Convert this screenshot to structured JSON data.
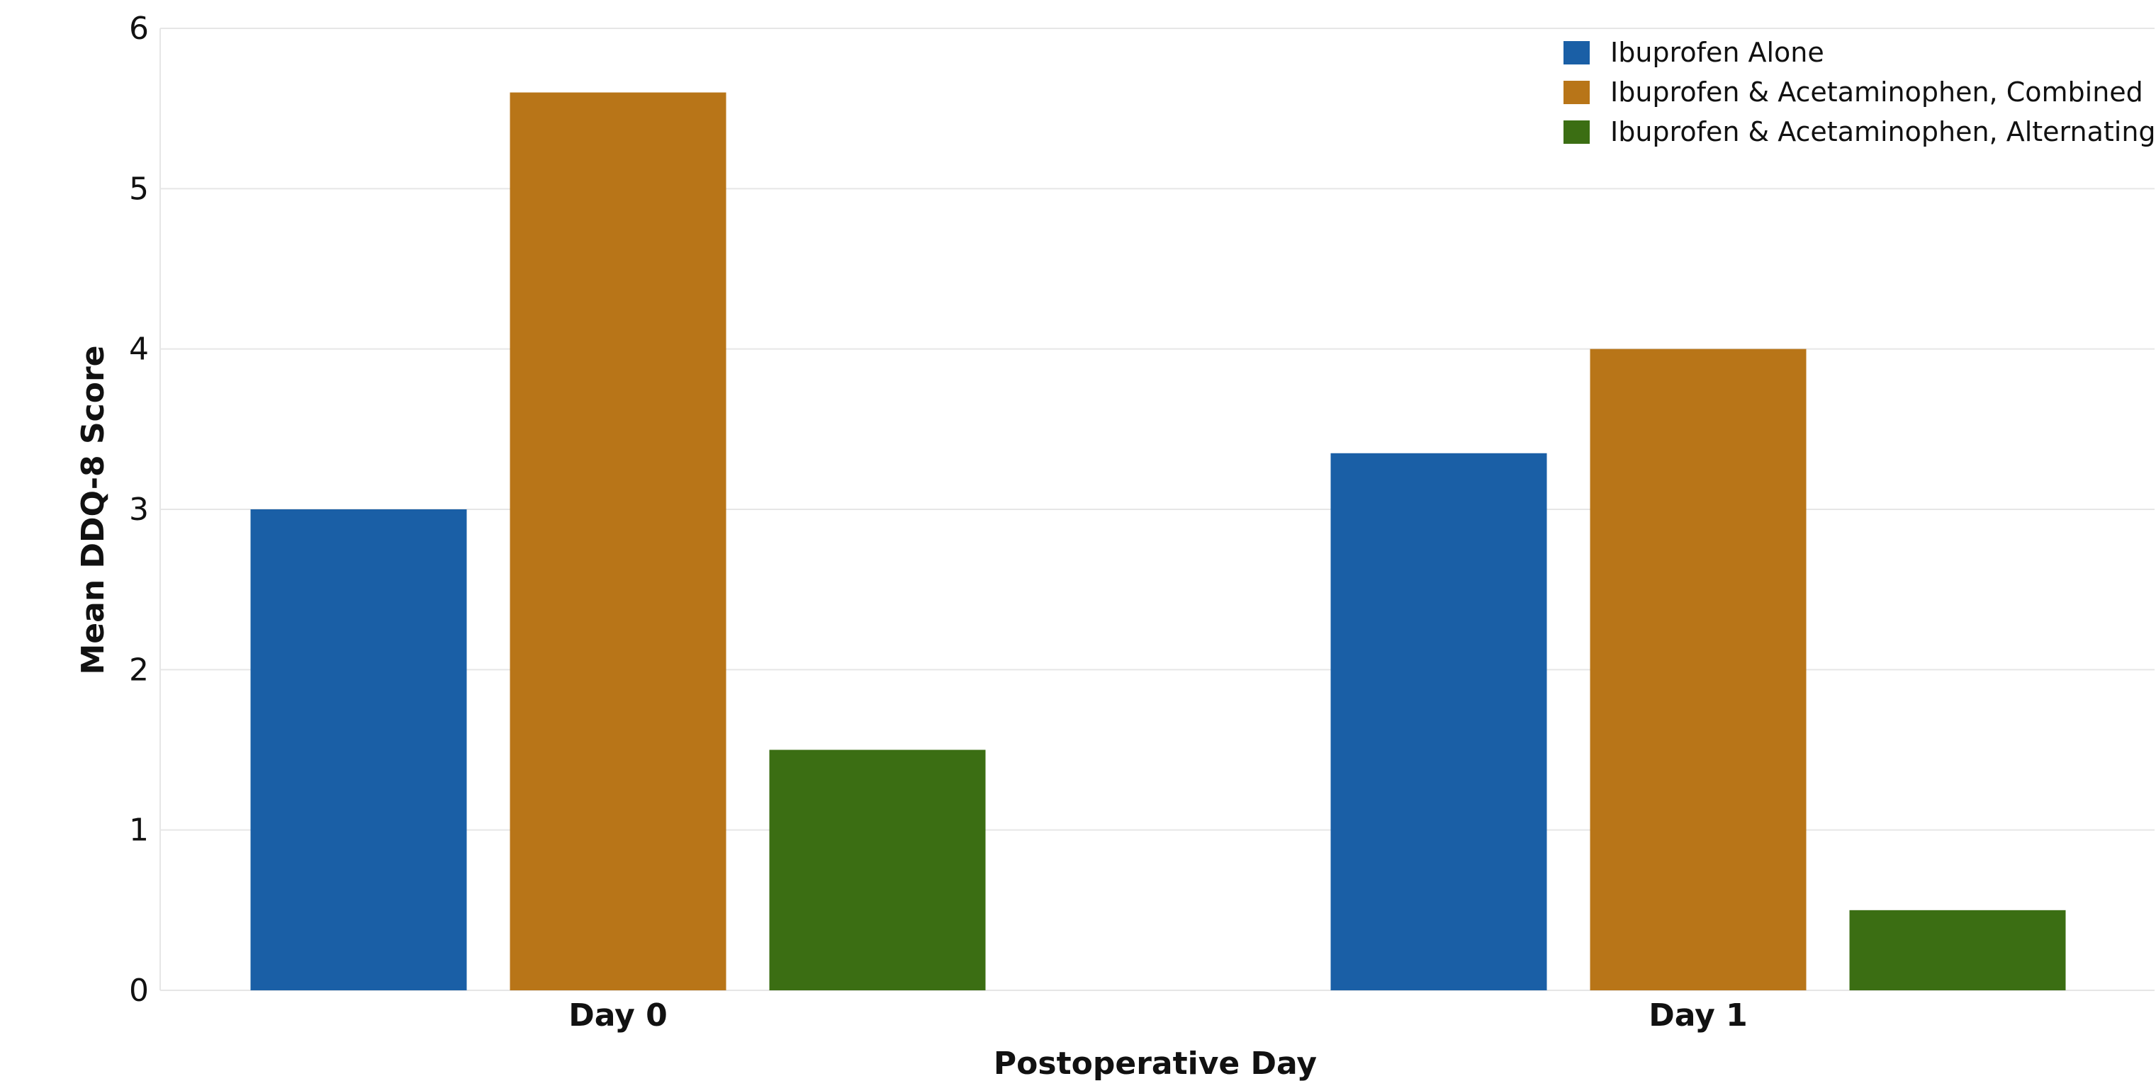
{
  "chart_data": {
    "type": "bar",
    "title": "",
    "xlabel": "Postoperative Day",
    "ylabel": "Mean DDQ-8 Score",
    "categories": [
      "Day 0",
      "Day 1"
    ],
    "series": [
      {
        "name": "Ibuprofen Alone",
        "color": "#1a5fa6",
        "values": [
          3.0,
          3.35
        ]
      },
      {
        "name": "Ibuprofen & Acetaminophen, Combined",
        "color": "#b87518",
        "values": [
          5.6,
          4.0
        ]
      },
      {
        "name": "Ibuprofen & Acetaminophen, Alternating",
        "color": "#3b6e13",
        "values": [
          1.5,
          0.5
        ]
      }
    ],
    "ylim": [
      0,
      6
    ],
    "yticks": [
      0,
      1,
      2,
      3,
      4,
      5,
      6
    ],
    "grid": true,
    "legend": "top-right"
  }
}
